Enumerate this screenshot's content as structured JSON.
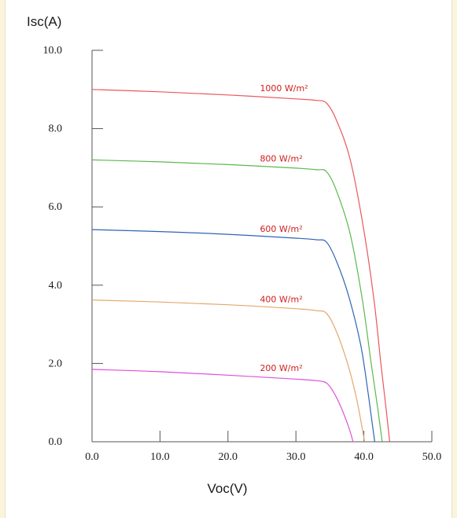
{
  "chart_data": {
    "type": "line",
    "xlabel": "Voc(V)",
    "ylabel": "Isc(A)",
    "xlim": [
      0,
      50
    ],
    "ylim": [
      0,
      10
    ],
    "xticks": [
      "0.0",
      "10.0",
      "20.0",
      "30.0",
      "40.0",
      "50.0"
    ],
    "yticks": [
      "0.0",
      "2.0",
      "4.0",
      "6.0",
      "8.0",
      "10.0"
    ],
    "grid": false,
    "legend": "inline-labels",
    "series": [
      {
        "name": "1000 W/m²",
        "color": "#e8585e",
        "label_at": [
          33.5,
          9.0
        ],
        "points": [
          [
            0,
            9.0
          ],
          [
            10,
            8.94
          ],
          [
            20,
            8.86
          ],
          [
            30,
            8.76
          ],
          [
            33,
            8.72
          ],
          [
            34.5,
            8.65
          ],
          [
            36,
            8.2
          ],
          [
            38,
            7.2
          ],
          [
            40,
            5.4
          ],
          [
            41.5,
            3.6
          ],
          [
            42.5,
            2.0
          ],
          [
            43.3,
            0.8
          ],
          [
            43.8,
            0.0
          ]
        ]
      },
      {
        "name": "800 W/m²",
        "color": "#5bb84e",
        "label_at": [
          33.5,
          7.2
        ],
        "points": [
          [
            0,
            7.2
          ],
          [
            10,
            7.15
          ],
          [
            20,
            7.08
          ],
          [
            30,
            6.99
          ],
          [
            33,
            6.95
          ],
          [
            34.5,
            6.9
          ],
          [
            36,
            6.4
          ],
          [
            38,
            5.3
          ],
          [
            39.8,
            3.6
          ],
          [
            41,
            2.1
          ],
          [
            42,
            0.9
          ],
          [
            42.7,
            0.0
          ]
        ]
      },
      {
        "name": "600 W/m²",
        "color": "#2f64b5",
        "label_at": [
          33.5,
          5.4
        ],
        "points": [
          [
            0,
            5.42
          ],
          [
            10,
            5.37
          ],
          [
            20,
            5.3
          ],
          [
            30,
            5.2
          ],
          [
            33,
            5.16
          ],
          [
            34.5,
            5.1
          ],
          [
            36,
            4.6
          ],
          [
            37.8,
            3.7
          ],
          [
            39.5,
            2.5
          ],
          [
            40.5,
            1.4
          ],
          [
            41.2,
            0.5
          ],
          [
            41.6,
            0.0
          ]
        ]
      },
      {
        "name": "400 W/m²",
        "color": "#e3a86b",
        "label_at": [
          33.5,
          3.6
        ],
        "points": [
          [
            0,
            3.62
          ],
          [
            10,
            3.57
          ],
          [
            20,
            3.5
          ],
          [
            30,
            3.4
          ],
          [
            33,
            3.35
          ],
          [
            34.5,
            3.28
          ],
          [
            36,
            2.8
          ],
          [
            37.6,
            2.0
          ],
          [
            38.8,
            1.2
          ],
          [
            39.6,
            0.5
          ],
          [
            40.1,
            0.0
          ]
        ]
      },
      {
        "name": "200 W/m²",
        "color": "#e04fd8",
        "label_at": [
          33.5,
          1.85
        ],
        "points": [
          [
            0,
            1.85
          ],
          [
            10,
            1.79
          ],
          [
            20,
            1.7
          ],
          [
            30,
            1.6
          ],
          [
            33,
            1.56
          ],
          [
            34.5,
            1.5
          ],
          [
            35.6,
            1.25
          ],
          [
            36.6,
            0.9
          ],
          [
            37.4,
            0.55
          ],
          [
            38,
            0.25
          ],
          [
            38.4,
            0.0
          ]
        ]
      }
    ]
  }
}
